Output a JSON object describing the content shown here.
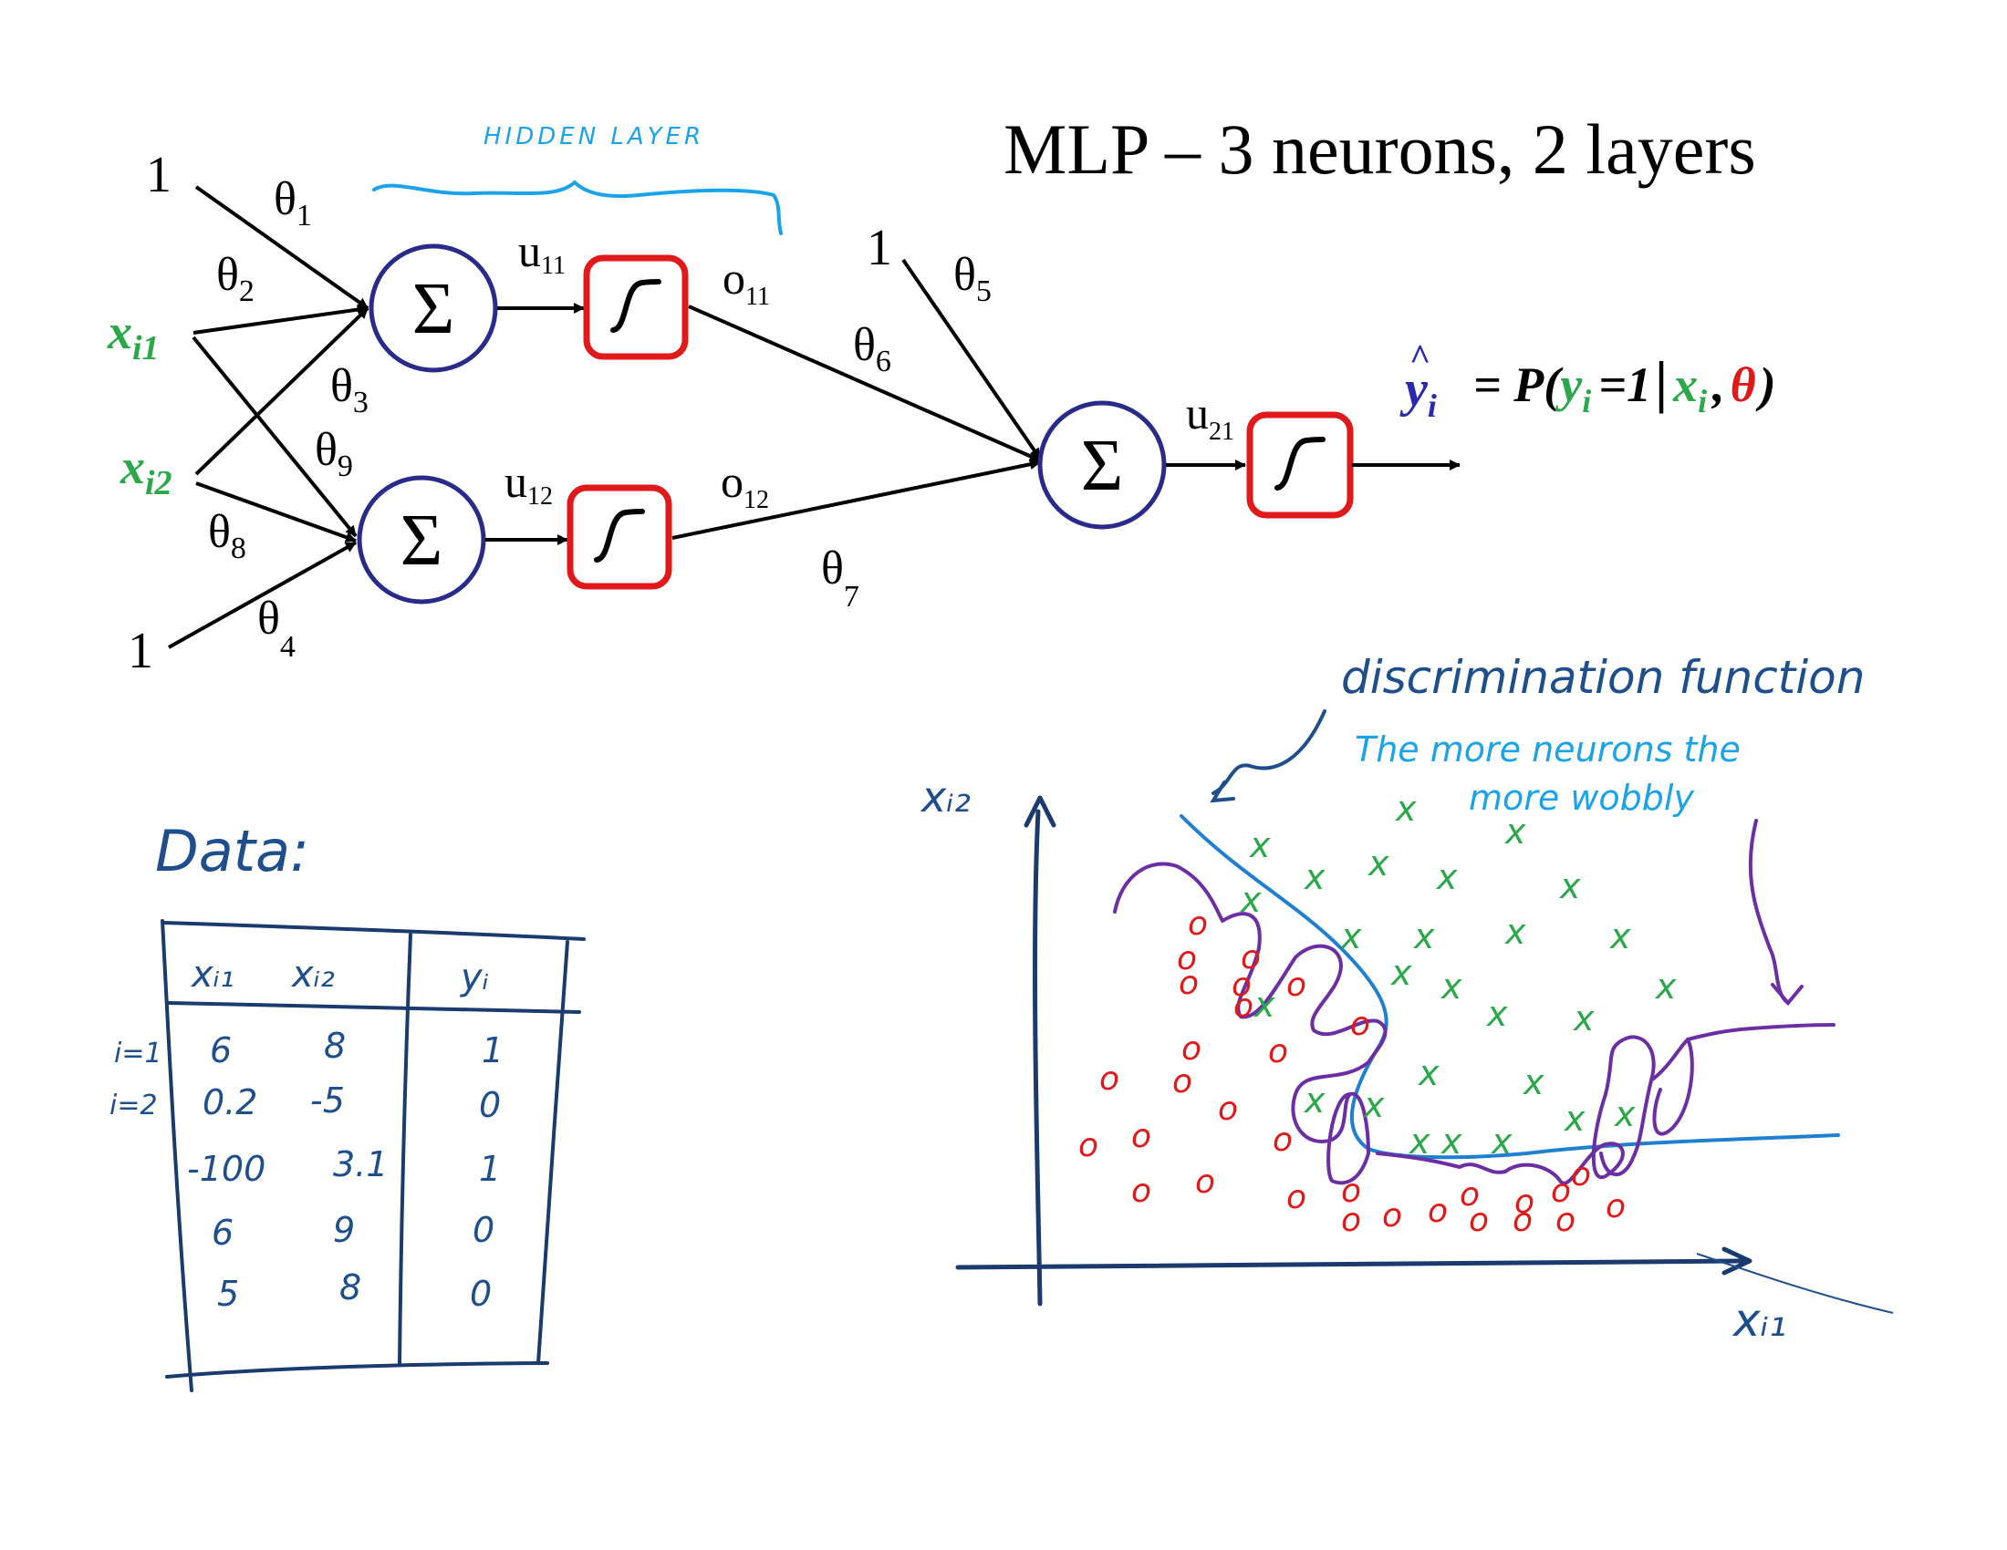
{
  "title": "MLP – 3 neurons, 2 layers",
  "hidden_layer_label": "HIDDEN LAYER",
  "network": {
    "bias_top": "1",
    "bias_bottom": "1",
    "bias_output": "1",
    "input_var": "x",
    "input1_sub": "i1",
    "input2_sub": "i2",
    "theta_symbol": "θ",
    "theta_subs": [
      "1",
      "2",
      "3",
      "4",
      "5",
      "6",
      "7",
      "8",
      "9"
    ],
    "sum_symbol": "Σ",
    "u_symbol": "u",
    "o_symbol": "o",
    "hidden1_u_sub": "11",
    "hidden1_o_sub": "11",
    "hidden2_u_sub": "12",
    "hidden2_o_sub": "12",
    "output_u_sub": "21"
  },
  "output_equation": {
    "hat": "^",
    "y": "y",
    "i": "i",
    "equals_p": "= P(",
    "equals_one": "=1",
    "bar": "|",
    "x": "x",
    "comma": ",",
    "theta": "θ",
    "close": ")"
  },
  "data_table": {
    "heading": "Data:",
    "columns": [
      "xᵢ₁",
      "xᵢ₂",
      "yᵢ"
    ],
    "row_labels": [
      "i=1",
      "i=2"
    ],
    "rows": [
      [
        "6",
        "8",
        "1"
      ],
      [
        "0.2",
        "-5",
        "0"
      ],
      [
        "-100",
        "3.1",
        "1"
      ],
      [
        "6",
        "9",
        "0"
      ],
      [
        "5",
        "8",
        "0"
      ]
    ]
  },
  "plot": {
    "note_title": "discrimination function",
    "note_line1": "The more neurons the",
    "note_line2": "more wobbly",
    "y_axis_label": "xᵢ₂",
    "x_axis_label": "xᵢ₁",
    "cross_marker": "x",
    "circle_marker": "o"
  },
  "colors": {
    "text": "#000000",
    "green": "#2aa84a",
    "red": "#e0191b",
    "blue_ink": "#1f4e8c",
    "light_blue": "#1aa3e8",
    "purple": "#6b2fa3",
    "neuron_stroke": "#2a2a8a",
    "activation_stroke": "#e0191b"
  }
}
